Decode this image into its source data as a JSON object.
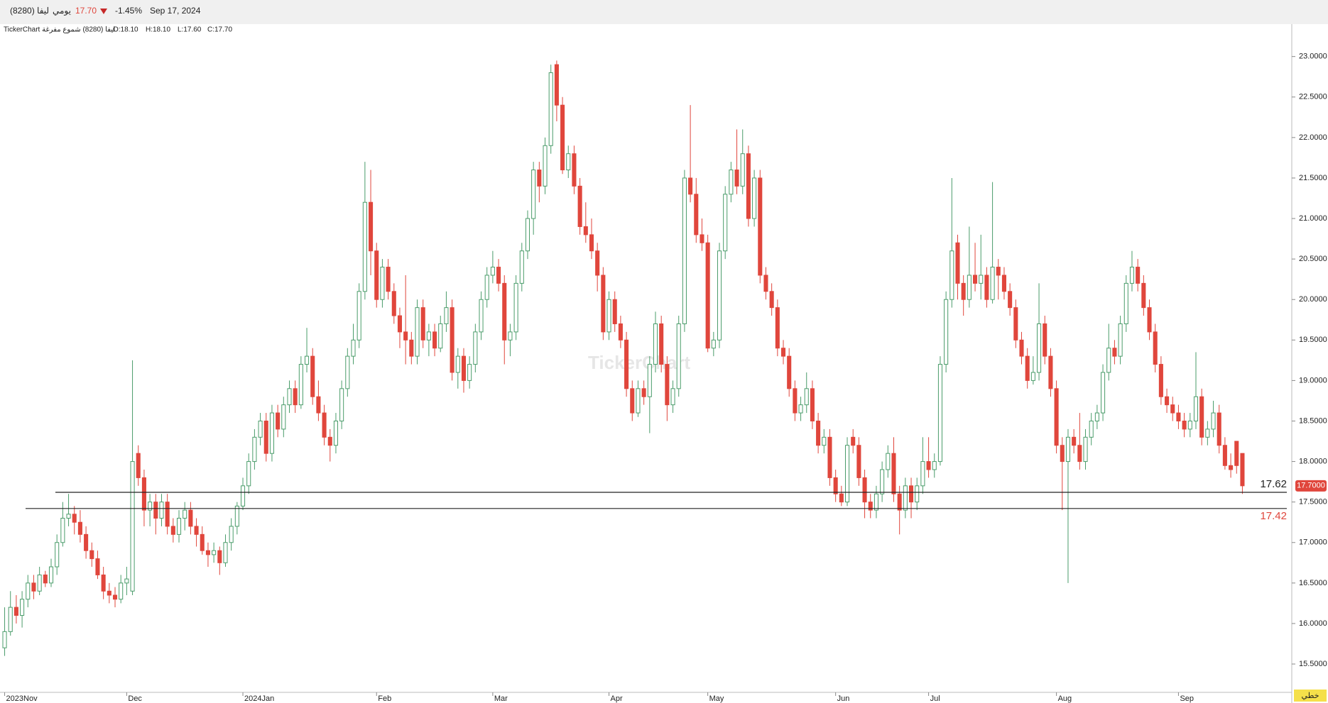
{
  "header": {
    "symbol": "ليفا (8280)",
    "period": "يومي",
    "price": "17.70",
    "change": "-1.45%",
    "date": "Sep 17, 2024"
  },
  "legend": {
    "source": "TickerChart ليفا (8280) شموع مفرغة",
    "open": "O:18.10",
    "high": "H:18.10",
    "low": "L:17.60",
    "close": "C:17.70"
  },
  "watermark": "TickerChart",
  "chart_style": "خطي",
  "chart_data": {
    "type": "candlestick",
    "up_color": "#4a9c6a",
    "down_color": "#e0463c",
    "ylim": [
      15.15,
      23.4
    ],
    "yticks": [
      {
        "value": 15.5,
        "label": "15.5000"
      },
      {
        "value": 16,
        "label": "16.0000"
      },
      {
        "value": 16.5,
        "label": "16.5000"
      },
      {
        "value": 17,
        "label": "17.0000"
      },
      {
        "value": 17.5,
        "label": "17.5000"
      },
      {
        "value": 18,
        "label": "18.0000"
      },
      {
        "value": 18.5,
        "label": "18.5000"
      },
      {
        "value": 19,
        "label": "19.0000"
      },
      {
        "value": 19.5,
        "label": "19.5000"
      },
      {
        "value": 20,
        "label": "20.0000"
      },
      {
        "value": 20.5,
        "label": "20.5000"
      },
      {
        "value": 21,
        "label": "21.0000"
      },
      {
        "value": 21.5,
        "label": "21.5000"
      },
      {
        "value": 22,
        "label": "22.0000"
      },
      {
        "value": 22.5,
        "label": "22.5000"
      },
      {
        "value": 23,
        "label": "23.0000"
      }
    ],
    "xlim": [
      -0.8,
      221.5
    ],
    "xticks": [
      {
        "value": 0,
        "label": "2023Nov"
      },
      {
        "value": 21,
        "label": "Dec"
      },
      {
        "value": 41,
        "label": "2024Jan"
      },
      {
        "value": 64,
        "label": "Feb"
      },
      {
        "value": 84,
        "label": "Mar"
      },
      {
        "value": 104,
        "label": "Apr"
      },
      {
        "value": 121,
        "label": "May"
      },
      {
        "value": 143,
        "label": "Jun"
      },
      {
        "value": 159,
        "label": "Jul"
      },
      {
        "value": 181,
        "label": "Aug"
      },
      {
        "value": 202,
        "label": "Sep"
      }
    ],
    "last_price": {
      "value": 17.7,
      "label": "17.7000"
    },
    "hlines": [
      {
        "value": 17.62,
        "label": "17.62",
        "color": "#222222"
      },
      {
        "value": 17.42,
        "label": "17.42",
        "color": "#e0463c"
      }
    ],
    "candles": [
      [
        15.7,
        16.2,
        15.6,
        15.9
      ],
      [
        15.9,
        16.4,
        15.85,
        16.2
      ],
      [
        16.2,
        16.35,
        16.0,
        16.1
      ],
      [
        16.1,
        16.4,
        15.95,
        16.3
      ],
      [
        16.3,
        16.6,
        16.2,
        16.5
      ],
      [
        16.5,
        16.6,
        16.3,
        16.4
      ],
      [
        16.4,
        16.7,
        16.35,
        16.6
      ],
      [
        16.6,
        16.65,
        16.45,
        16.5
      ],
      [
        16.5,
        16.8,
        16.45,
        16.7
      ],
      [
        16.7,
        17.1,
        16.6,
        17.0
      ],
      [
        17.0,
        17.5,
        16.95,
        17.3
      ],
      [
        17.3,
        17.6,
        17.2,
        17.35
      ],
      [
        17.35,
        17.45,
        17.1,
        17.25
      ],
      [
        17.25,
        17.4,
        17.0,
        17.1
      ],
      [
        17.1,
        17.2,
        16.8,
        16.9
      ],
      [
        16.9,
        17.0,
        16.7,
        16.8
      ],
      [
        16.8,
        16.9,
        16.55,
        16.6
      ],
      [
        16.6,
        16.7,
        16.3,
        16.4
      ],
      [
        16.4,
        16.5,
        16.25,
        16.35
      ],
      [
        16.35,
        16.45,
        16.2,
        16.3
      ],
      [
        16.3,
        16.6,
        16.25,
        16.5
      ],
      [
        16.5,
        16.7,
        16.35,
        16.55
      ],
      [
        16.4,
        19.25,
        16.35,
        18.0
      ],
      [
        18.1,
        18.2,
        17.7,
        17.8
      ],
      [
        17.8,
        17.9,
        17.2,
        17.4
      ],
      [
        17.4,
        17.6,
        17.2,
        17.5
      ],
      [
        17.5,
        17.6,
        17.1,
        17.3
      ],
      [
        17.3,
        17.6,
        17.2,
        17.5
      ],
      [
        17.5,
        17.6,
        17.1,
        17.2
      ],
      [
        17.2,
        17.3,
        17.0,
        17.1
      ],
      [
        17.1,
        17.4,
        17.0,
        17.3
      ],
      [
        17.3,
        17.5,
        17.15,
        17.4
      ],
      [
        17.4,
        17.5,
        17.1,
        17.2
      ],
      [
        17.2,
        17.3,
        16.95,
        17.1
      ],
      [
        17.1,
        17.2,
        16.85,
        16.9
      ],
      [
        16.9,
        17.0,
        16.7,
        16.85
      ],
      [
        16.85,
        17.0,
        16.75,
        16.9
      ],
      [
        16.9,
        16.95,
        16.6,
        16.75
      ],
      [
        16.75,
        17.1,
        16.7,
        17.0
      ],
      [
        17.0,
        17.3,
        16.9,
        17.2
      ],
      [
        17.2,
        17.5,
        17.1,
        17.45
      ],
      [
        17.45,
        17.8,
        17.4,
        17.7
      ],
      [
        17.7,
        18.1,
        17.6,
        18.0
      ],
      [
        18.0,
        18.4,
        17.9,
        18.3
      ],
      [
        18.3,
        18.6,
        18.2,
        18.5
      ],
      [
        18.5,
        18.6,
        18.0,
        18.1
      ],
      [
        18.1,
        18.7,
        18.0,
        18.6
      ],
      [
        18.6,
        18.7,
        18.3,
        18.4
      ],
      [
        18.4,
        18.8,
        18.3,
        18.7
      ],
      [
        18.7,
        19.0,
        18.6,
        18.9
      ],
      [
        18.9,
        19.0,
        18.6,
        18.7
      ],
      [
        18.7,
        19.3,
        18.65,
        19.2
      ],
      [
        19.2,
        19.65,
        19.1,
        19.3
      ],
      [
        19.3,
        19.4,
        18.7,
        18.8
      ],
      [
        18.8,
        19.0,
        18.5,
        18.6
      ],
      [
        18.6,
        18.7,
        18.2,
        18.3
      ],
      [
        18.3,
        18.4,
        18.0,
        18.2
      ],
      [
        18.2,
        18.6,
        18.1,
        18.5
      ],
      [
        18.5,
        19.0,
        18.4,
        18.9
      ],
      [
        18.9,
        19.4,
        18.8,
        19.3
      ],
      [
        19.3,
        19.7,
        19.2,
        19.5
      ],
      [
        19.5,
        20.2,
        19.4,
        20.1
      ],
      [
        20.1,
        21.7,
        20.0,
        21.2
      ],
      [
        21.2,
        21.6,
        20.3,
        20.6
      ],
      [
        20.6,
        20.7,
        19.9,
        20.0
      ],
      [
        20.0,
        20.5,
        19.9,
        20.4
      ],
      [
        20.4,
        20.5,
        20.0,
        20.1
      ],
      [
        20.1,
        20.2,
        19.7,
        19.8
      ],
      [
        19.8,
        19.9,
        19.4,
        19.6
      ],
      [
        19.6,
        20.3,
        19.2,
        19.5
      ],
      [
        19.5,
        19.6,
        19.2,
        19.3
      ],
      [
        19.3,
        20.0,
        19.2,
        19.9
      ],
      [
        19.9,
        20.0,
        19.4,
        19.5
      ],
      [
        19.5,
        19.7,
        19.3,
        19.6
      ],
      [
        19.6,
        19.7,
        19.3,
        19.4
      ],
      [
        19.4,
        19.8,
        19.35,
        19.7
      ],
      [
        19.7,
        20.1,
        19.6,
        19.9
      ],
      [
        19.9,
        20.0,
        19.0,
        19.1
      ],
      [
        19.1,
        19.4,
        18.9,
        19.3
      ],
      [
        19.3,
        19.4,
        18.85,
        19.0
      ],
      [
        19.0,
        19.3,
        18.9,
        19.2
      ],
      [
        19.2,
        19.7,
        19.1,
        19.6
      ],
      [
        19.6,
        20.1,
        19.5,
        20.0
      ],
      [
        20.0,
        20.4,
        19.9,
        20.3
      ],
      [
        20.3,
        20.6,
        20.2,
        20.4
      ],
      [
        20.4,
        20.5,
        20.1,
        20.2
      ],
      [
        20.2,
        20.3,
        19.2,
        19.5
      ],
      [
        19.5,
        19.7,
        19.3,
        19.6
      ],
      [
        19.6,
        20.3,
        19.5,
        20.2
      ],
      [
        20.2,
        20.7,
        20.1,
        20.6
      ],
      [
        20.6,
        21.1,
        20.5,
        21.0
      ],
      [
        21.0,
        21.7,
        20.8,
        21.6
      ],
      [
        21.6,
        21.7,
        21.2,
        21.4
      ],
      [
        21.4,
        22.0,
        21.3,
        21.9
      ],
      [
        21.9,
        22.9,
        21.8,
        22.8
      ],
      [
        22.9,
        22.95,
        22.2,
        22.4
      ],
      [
        22.4,
        22.5,
        21.55,
        21.6
      ],
      [
        21.6,
        21.9,
        21.5,
        21.8
      ],
      [
        21.8,
        21.9,
        21.3,
        21.4
      ],
      [
        21.4,
        21.5,
        20.8,
        20.9
      ],
      [
        20.9,
        21.2,
        20.7,
        20.8
      ],
      [
        20.8,
        21.0,
        20.5,
        20.6
      ],
      [
        20.6,
        20.7,
        20.1,
        20.3
      ],
      [
        20.3,
        20.4,
        19.5,
        19.6
      ],
      [
        19.6,
        20.1,
        19.5,
        20.0
      ],
      [
        20.0,
        20.1,
        19.6,
        19.7
      ],
      [
        19.7,
        19.8,
        19.4,
        19.5
      ],
      [
        19.5,
        19.6,
        18.8,
        18.9
      ],
      [
        18.9,
        19.0,
        18.5,
        18.6
      ],
      [
        18.6,
        19.0,
        18.55,
        18.9
      ],
      [
        18.9,
        19.0,
        18.7,
        18.8
      ],
      [
        18.8,
        19.3,
        18.35,
        19.2
      ],
      [
        19.2,
        19.85,
        19.1,
        19.7
      ],
      [
        19.7,
        19.8,
        19.1,
        19.2
      ],
      [
        19.2,
        19.3,
        18.5,
        18.7
      ],
      [
        18.7,
        19.0,
        18.6,
        18.9
      ],
      [
        18.9,
        19.8,
        18.8,
        19.7
      ],
      [
        19.7,
        21.6,
        19.6,
        21.5
      ],
      [
        21.5,
        22.4,
        21.2,
        21.3
      ],
      [
        21.3,
        21.5,
        20.7,
        20.8
      ],
      [
        20.8,
        21.0,
        20.6,
        20.7
      ],
      [
        20.7,
        20.8,
        19.35,
        19.4
      ],
      [
        19.4,
        19.6,
        19.3,
        19.5
      ],
      [
        19.5,
        20.7,
        19.4,
        20.6
      ],
      [
        20.6,
        21.4,
        20.5,
        21.3
      ],
      [
        21.3,
        21.7,
        21.2,
        21.6
      ],
      [
        21.6,
        22.1,
        21.3,
        21.4
      ],
      [
        21.4,
        22.1,
        21.3,
        21.8
      ],
      [
        21.8,
        21.9,
        20.9,
        21.0
      ],
      [
        21.0,
        21.6,
        20.9,
        21.5
      ],
      [
        21.5,
        21.6,
        20.2,
        20.3
      ],
      [
        20.3,
        20.4,
        20.0,
        20.1
      ],
      [
        20.1,
        20.2,
        19.8,
        19.9
      ],
      [
        19.9,
        20.0,
        19.3,
        19.4
      ],
      [
        19.4,
        19.5,
        19.2,
        19.3
      ],
      [
        19.3,
        19.4,
        18.8,
        18.9
      ],
      [
        18.9,
        19.0,
        18.5,
        18.6
      ],
      [
        18.6,
        18.8,
        18.5,
        18.7
      ],
      [
        18.7,
        19.1,
        18.6,
        18.9
      ],
      [
        18.9,
        19.0,
        18.4,
        18.5
      ],
      [
        18.5,
        18.6,
        18.1,
        18.2
      ],
      [
        18.2,
        18.4,
        18.1,
        18.3
      ],
      [
        18.3,
        18.4,
        17.7,
        17.8
      ],
      [
        17.8,
        17.9,
        17.5,
        17.6
      ],
      [
        17.6,
        17.7,
        17.45,
        17.5
      ],
      [
        17.5,
        18.3,
        17.45,
        18.2
      ],
      [
        18.3,
        18.4,
        18.1,
        18.2
      ],
      [
        18.2,
        18.3,
        17.7,
        17.8
      ],
      [
        17.8,
        17.9,
        17.3,
        17.5
      ],
      [
        17.5,
        17.6,
        17.3,
        17.4
      ],
      [
        17.4,
        17.7,
        17.3,
        17.6
      ],
      [
        17.6,
        18.0,
        17.5,
        17.9
      ],
      [
        17.9,
        18.2,
        17.8,
        18.1
      ],
      [
        18.1,
        18.3,
        17.5,
        17.6
      ],
      [
        17.6,
        17.7,
        17.1,
        17.4
      ],
      [
        17.4,
        17.8,
        17.3,
        17.7
      ],
      [
        17.7,
        17.8,
        17.3,
        17.5
      ],
      [
        17.5,
        17.8,
        17.4,
        17.7
      ],
      [
        17.7,
        18.3,
        17.6,
        18.0
      ],
      [
        18.0,
        18.3,
        17.8,
        17.9
      ],
      [
        17.9,
        18.1,
        17.8,
        18.0
      ],
      [
        18.0,
        19.3,
        17.95,
        19.2
      ],
      [
        19.2,
        20.1,
        19.1,
        20.0
      ],
      [
        20.0,
        21.5,
        19.9,
        20.6
      ],
      [
        20.7,
        20.8,
        20.0,
        20.2
      ],
      [
        20.2,
        20.3,
        19.8,
        20.0
      ],
      [
        20.0,
        20.9,
        19.9,
        20.3
      ],
      [
        20.3,
        20.7,
        20.1,
        20.2
      ],
      [
        20.2,
        20.8,
        20.0,
        20.3
      ],
      [
        20.3,
        20.4,
        19.9,
        20.0
      ],
      [
        20.0,
        21.45,
        19.95,
        20.4
      ],
      [
        20.4,
        20.5,
        20.0,
        20.3
      ],
      [
        20.3,
        20.4,
        20.0,
        20.1
      ],
      [
        20.1,
        20.2,
        19.8,
        19.9
      ],
      [
        19.9,
        20.0,
        19.4,
        19.5
      ],
      [
        19.5,
        19.6,
        19.2,
        19.3
      ],
      [
        19.3,
        19.4,
        18.9,
        19.0
      ],
      [
        19.0,
        19.3,
        18.95,
        19.1
      ],
      [
        19.1,
        20.2,
        19.0,
        19.7
      ],
      [
        19.7,
        19.8,
        19.2,
        19.3
      ],
      [
        19.3,
        19.4,
        18.8,
        18.9
      ],
      [
        18.9,
        19.0,
        18.1,
        18.2
      ],
      [
        18.2,
        18.3,
        17.4,
        18.0
      ],
      [
        18.0,
        18.4,
        16.5,
        18.3
      ],
      [
        18.3,
        18.4,
        18.1,
        18.2
      ],
      [
        18.2,
        18.6,
        17.9,
        18.0
      ],
      [
        18.0,
        18.4,
        17.9,
        18.3
      ],
      [
        18.3,
        18.6,
        18.2,
        18.5
      ],
      [
        18.5,
        18.7,
        18.4,
        18.6
      ],
      [
        18.6,
        19.2,
        18.5,
        19.1
      ],
      [
        19.1,
        19.7,
        19.0,
        19.4
      ],
      [
        19.4,
        19.5,
        19.2,
        19.3
      ],
      [
        19.3,
        19.8,
        19.2,
        19.7
      ],
      [
        19.7,
        20.3,
        19.6,
        20.2
      ],
      [
        20.2,
        20.6,
        20.1,
        20.4
      ],
      [
        20.4,
        20.5,
        20.1,
        20.2
      ],
      [
        20.2,
        20.3,
        19.8,
        19.9
      ],
      [
        19.9,
        20.0,
        19.5,
        19.6
      ],
      [
        19.6,
        19.7,
        19.1,
        19.2
      ],
      [
        19.2,
        19.3,
        18.7,
        18.8
      ],
      [
        18.8,
        18.9,
        18.6,
        18.7
      ],
      [
        18.7,
        18.8,
        18.5,
        18.6
      ],
      [
        18.6,
        18.7,
        18.4,
        18.5
      ],
      [
        18.5,
        18.6,
        18.3,
        18.4
      ],
      [
        18.4,
        18.6,
        18.3,
        18.5
      ],
      [
        18.5,
        19.35,
        18.4,
        18.8
      ],
      [
        18.8,
        18.9,
        18.2,
        18.3
      ],
      [
        18.3,
        18.5,
        18.2,
        18.4
      ],
      [
        18.4,
        18.75,
        18.3,
        18.6
      ],
      [
        18.6,
        18.7,
        18.1,
        18.2
      ],
      [
        18.2,
        18.3,
        17.9,
        17.95
      ],
      [
        17.95,
        18.1,
        17.8,
        17.9
      ],
      [
        18.25,
        18.25,
        17.85,
        17.95
      ],
      [
        18.1,
        18.1,
        17.6,
        17.7
      ]
    ]
  }
}
